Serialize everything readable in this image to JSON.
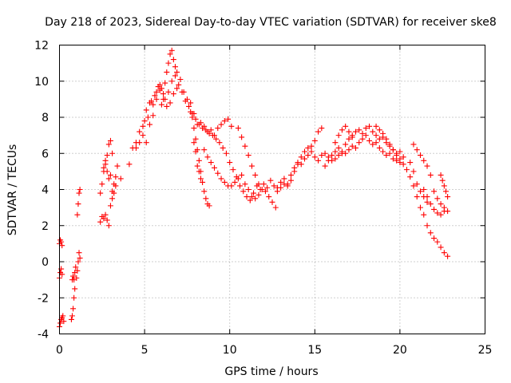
{
  "chart_data": {
    "type": "scatter",
    "title": "Day 218 of 2023, Sidereal Day-to-day VTEC variation (SDTVAR) for receiver ske8",
    "xlabel": "GPS time / hours",
    "ylabel": "SDTVAR / TECUs",
    "xlim": [
      0,
      25
    ],
    "ylim": [
      -4,
      12
    ],
    "xticks": [
      "0",
      "5",
      "10",
      "15",
      "20",
      "25"
    ],
    "yticks": [
      "-4",
      "-2",
      "0",
      "2",
      "4",
      "6",
      "8",
      "10",
      "12"
    ],
    "grid": true,
    "marker": "+",
    "color": "#ff0000",
    "series": [
      {
        "name": "s1",
        "x": [
          0.0,
          0.05,
          0.1,
          0.15,
          0.2,
          0.25
        ],
        "y": [
          -3.6,
          -3.4,
          -3.2,
          -3.1,
          -3.0,
          -3.3
        ]
      },
      {
        "name": "s2",
        "x": [
          0.0,
          0.05,
          0.1,
          0.15
        ],
        "y": [
          1.0,
          1.2,
          1.1,
          0.9
        ]
      },
      {
        "name": "s3",
        "x": [
          0.0,
          0.05,
          0.1,
          0.15
        ],
        "y": [
          -0.9,
          -0.6,
          -0.4,
          -0.7
        ]
      },
      {
        "name": "s4",
        "x": [
          0.7,
          0.75,
          0.8,
          0.85,
          0.9
        ],
        "y": [
          -3.2,
          -3.0,
          -2.6,
          -2.0,
          -1.5
        ]
      },
      {
        "name": "s5",
        "x": [
          0.75,
          0.8,
          0.85,
          0.9,
          0.95,
          1.0
        ],
        "y": [
          -1.0,
          -0.8,
          -1.0,
          -0.6,
          -0.3,
          -0.9
        ]
      },
      {
        "name": "s6",
        "x": [
          1.05,
          1.1,
          1.15,
          1.2
        ],
        "y": [
          -0.5,
          0.0,
          0.5,
          0.2
        ]
      },
      {
        "name": "s7",
        "x": [
          1.05,
          1.1,
          1.15,
          1.2
        ],
        "y": [
          2.6,
          3.2,
          3.8,
          4.0
        ]
      },
      {
        "name": "s8",
        "x": [
          2.4,
          2.5,
          2.6,
          2.7,
          2.8,
          2.9,
          3.0,
          3.1,
          3.2,
          3.3
        ],
        "y": [
          2.2,
          2.5,
          2.4,
          2.6,
          2.3,
          2.0,
          3.1,
          3.5,
          3.8,
          4.2
        ]
      },
      {
        "name": "s9",
        "x": [
          2.4,
          2.5,
          2.6,
          2.7,
          2.8,
          2.9,
          3.0,
          3.1
        ],
        "y": [
          3.8,
          4.3,
          5.0,
          5.6,
          5.9,
          6.5,
          6.7,
          6.0
        ]
      },
      {
        "name": "s10",
        "x": [
          2.6,
          2.7,
          2.8,
          2.9,
          3.0
        ],
        "y": [
          5.2,
          5.4,
          5.0,
          4.6,
          4.8
        ]
      },
      {
        "name": "s11",
        "x": [
          3.1,
          3.2,
          3.3,
          3.4,
          3.6
        ],
        "y": [
          3.9,
          4.3,
          4.7,
          5.3,
          4.6
        ]
      },
      {
        "name": "s12",
        "x": [
          4.1,
          4.3,
          4.5,
          4.7,
          4.9,
          5.0,
          5.1,
          5.2,
          5.3,
          5.4,
          5.5,
          5.6,
          5.7,
          5.8,
          5.9,
          6.0,
          6.1,
          6.2,
          6.3,
          6.4,
          6.5,
          6.6,
          6.7,
          6.8,
          6.9
        ],
        "y": [
          5.4,
          6.3,
          6.6,
          7.2,
          7.5,
          7.8,
          8.4,
          8.0,
          8.8,
          8.9,
          8.7,
          9.2,
          9.4,
          9.7,
          9.8,
          9.6,
          9.3,
          9.9,
          10.5,
          11.0,
          11.5,
          11.7,
          11.2,
          10.8,
          10.5
        ]
      },
      {
        "name": "s13",
        "x": [
          4.5,
          4.7,
          4.9,
          5.1,
          5.3,
          5.5,
          5.7,
          5.9,
          6.1,
          6.3,
          6.5,
          6.7,
          6.9,
          7.1,
          7.3,
          7.5,
          7.7,
          7.9,
          8.1,
          8.3,
          8.5,
          8.7,
          8.9,
          9.1,
          9.3,
          9.5,
          9.7,
          9.9,
          10.1
        ],
        "y": [
          6.3,
          6.6,
          7.0,
          6.6,
          7.6,
          8.1,
          9.0,
          9.5,
          9.0,
          8.6,
          8.8,
          9.3,
          9.6,
          10.1,
          9.4,
          9.0,
          8.8,
          8.2,
          7.6,
          7.7,
          7.5,
          7.2,
          7.3,
          7.0,
          7.4,
          7.6,
          7.8,
          7.9,
          7.5
        ]
      },
      {
        "name": "s14",
        "x": [
          6.0,
          6.2,
          6.4,
          6.6,
          6.8,
          7.0,
          7.2,
          7.4,
          7.6,
          7.8,
          8.0,
          8.2,
          8.4,
          8.6,
          8.8,
          9.0,
          9.2,
          9.4,
          9.6,
          9.8,
          10.0,
          10.2,
          10.4,
          10.6,
          10.8,
          11.0,
          11.2,
          11.4,
          11.6,
          11.8,
          12.0,
          12.2,
          12.4,
          12.6,
          12.8,
          13.0,
          13.2,
          13.4
        ],
        "y": [
          8.7,
          9.0,
          9.4,
          10.0,
          10.3,
          9.8,
          9.4,
          8.9,
          8.6,
          8.2,
          7.9,
          7.6,
          7.4,
          7.3,
          7.1,
          7.0,
          6.8,
          6.6,
          6.3,
          6.0,
          5.5,
          5.1,
          4.7,
          4.2,
          3.9,
          3.6,
          3.4,
          3.8,
          4.2,
          4.0,
          4.3,
          4.1,
          4.5,
          4.2,
          4.1,
          4.4,
          4.6,
          4.3
        ]
      },
      {
        "name": "s15",
        "x": [
          7.7,
          7.8,
          7.9,
          8.0,
          8.1,
          8.2,
          8.3,
          8.4,
          8.5,
          8.6,
          8.7,
          8.8
        ],
        "y": [
          8.3,
          8.0,
          7.4,
          6.8,
          6.2,
          5.6,
          5.0,
          4.4,
          3.9,
          3.5,
          3.2,
          3.1
        ]
      },
      {
        "name": "s16",
        "x": [
          7.9,
          8.0,
          8.1,
          8.2,
          8.3
        ],
        "y": [
          6.6,
          6.1,
          5.3,
          5.0,
          4.6
        ]
      },
      {
        "name": "s17",
        "x": [
          8.5,
          8.7,
          8.9,
          9.1,
          9.3,
          9.5,
          9.7,
          9.9,
          10.1,
          10.3,
          10.5,
          10.7,
          10.9,
          11.1,
          11.3,
          11.5,
          11.7,
          11.9,
          12.1,
          12.3,
          12.5,
          12.7
        ],
        "y": [
          6.2,
          5.8,
          5.5,
          5.2,
          4.9,
          4.6,
          4.4,
          4.2,
          4.2,
          4.4,
          4.6,
          4.8,
          4.3,
          4.0,
          3.6,
          3.5,
          3.7,
          4.0,
          3.9,
          3.6,
          3.3,
          3.0
        ]
      },
      {
        "name": "s18",
        "x": [
          10.5,
          10.7,
          10.9,
          11.1,
          11.3,
          11.5,
          11.7
        ],
        "y": [
          7.4,
          6.9,
          6.4,
          5.9,
          5.3,
          4.8,
          4.3
        ]
      },
      {
        "name": "s19",
        "x": [
          12.8,
          13.0,
          13.2,
          13.4,
          13.6,
          13.8,
          14.0,
          14.2,
          14.4,
          14.6,
          14.8,
          15.0,
          15.2,
          15.4
        ],
        "y": [
          3.9,
          4.1,
          4.3,
          4.2,
          4.5,
          5.0,
          5.4,
          5.8,
          6.1,
          6.3,
          6.4,
          6.7,
          7.2,
          7.4
        ]
      },
      {
        "name": "s20",
        "x": [
          13.6,
          13.8,
          14.0,
          14.2,
          14.4,
          14.6,
          14.8,
          15.0,
          15.2,
          15.4,
          15.6,
          15.8,
          16.0,
          16.2,
          16.4,
          16.6,
          16.8,
          17.0,
          17.2,
          17.4,
          17.6,
          17.8,
          18.0,
          18.2,
          18.4,
          18.6,
          18.8,
          19.0,
          19.2,
          19.4,
          19.6,
          19.8,
          20.0,
          20.2
        ],
        "y": [
          4.8,
          5.2,
          5.5,
          5.4,
          5.7,
          5.9,
          6.1,
          5.8,
          5.6,
          5.9,
          6.0,
          5.8,
          5.6,
          5.7,
          5.9,
          6.1,
          6.0,
          6.2,
          6.4,
          6.3,
          6.6,
          6.8,
          7.0,
          6.7,
          6.5,
          6.6,
          6.3,
          6.1,
          5.9,
          6.0,
          5.7,
          5.6,
          5.5,
          5.8
        ]
      },
      {
        "name": "s21",
        "x": [
          15.6,
          15.8,
          16.0,
          16.2,
          16.4,
          16.6,
          16.8,
          17.0,
          17.2,
          17.4,
          17.6,
          17.8,
          18.0,
          18.2,
          18.4,
          18.6,
          18.8,
          19.0,
          19.2,
          19.4,
          19.6,
          19.8,
          20.0
        ],
        "y": [
          5.3,
          5.6,
          5.9,
          6.1,
          6.3,
          6.0,
          6.5,
          6.8,
          7.0,
          7.2,
          7.3,
          7.1,
          7.4,
          7.5,
          7.2,
          7.0,
          6.8,
          6.9,
          6.6,
          6.4,
          6.2,
          6.0,
          6.1
        ]
      },
      {
        "name": "s22",
        "x": [
          16.2,
          16.4,
          16.6,
          16.8,
          17.0,
          17.2
        ],
        "y": [
          6.6,
          7.0,
          7.3,
          7.5,
          7.2,
          6.9
        ]
      },
      {
        "name": "s23",
        "x": [
          18.6,
          18.8,
          19.0,
          19.2,
          19.4,
          19.6
        ],
        "y": [
          7.5,
          7.3,
          7.1,
          6.8,
          6.5,
          6.2
        ]
      },
      {
        "name": "s24",
        "x": [
          19.8,
          20.0,
          20.2,
          20.4,
          20.6,
          20.8,
          21.0,
          21.2,
          21.4,
          21.6,
          21.8,
          22.0,
          22.2,
          22.4,
          22.6,
          22.8
        ],
        "y": [
          5.9,
          5.7,
          5.4,
          5.1,
          4.7,
          4.2,
          3.6,
          3.0,
          2.6,
          2.0,
          1.6,
          1.3,
          1.1,
          0.8,
          0.5,
          0.3
        ]
      },
      {
        "name": "s25",
        "x": [
          20.6,
          20.8,
          21.0,
          21.2,
          21.4,
          21.6
        ],
        "y": [
          5.5,
          5.0,
          4.3,
          3.9,
          3.6,
          3.3
        ]
      },
      {
        "name": "s26",
        "x": [
          20.8,
          21.0,
          21.2,
          21.4,
          21.6,
          21.8,
          22.0,
          22.2,
          22.4,
          22.6,
          22.8
        ],
        "y": [
          6.5,
          6.2,
          5.9,
          5.6,
          5.3,
          4.8,
          3.9,
          3.5,
          3.2,
          3.0,
          2.8
        ]
      },
      {
        "name": "s27",
        "x": [
          21.4,
          21.6,
          21.8,
          22.0,
          22.2,
          22.4,
          22.6
        ],
        "y": [
          4.0,
          3.6,
          3.2,
          2.9,
          2.7,
          2.6,
          2.8
        ]
      },
      {
        "name": "s28",
        "x": [
          22.4,
          22.5,
          22.6,
          22.7,
          22.8
        ],
        "y": [
          4.8,
          4.5,
          4.2,
          3.9,
          3.6
        ]
      }
    ]
  }
}
